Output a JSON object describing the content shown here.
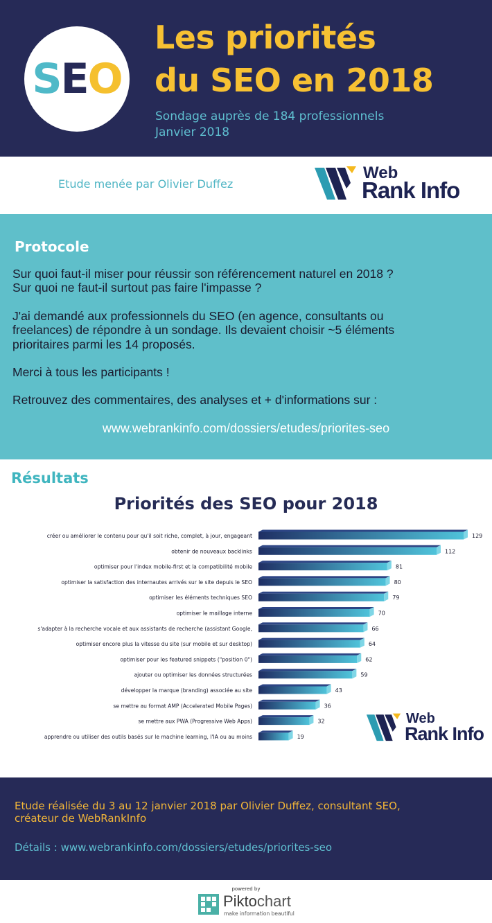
{
  "header": {
    "badge": {
      "s": "S",
      "e": "E",
      "o": "O"
    },
    "title_line1": "Les priorités",
    "title_line2": "du SEO en 2018",
    "subtitle_line1": "Sondage auprès de 184 professionnels",
    "subtitle_line2": "Janvier 2018"
  },
  "byline": {
    "author": "Etude menée par Olivier Duffez",
    "logo_web": "Web",
    "logo_rankinfo": "Rank Info"
  },
  "protocole": {
    "title": "Protocole",
    "lines": [
      "Sur quoi faut-il miser pour réussir son référencement naturel en 2018 ?",
      "Sur quoi ne faut-il surtout pas faire l'impasse ?",
      "J'ai demandé aux professionnels du SEO (en agence, consultants ou",
      "freelances) de répondre à un sondage. Ils devaient choisir ~5 éléments",
      "prioritaires parmi les 14 proposés.",
      "Merci à tous les participants !",
      "Retrouvez  des commentaires, des analyses et + d'informations sur :"
    ],
    "url": "www.webrankinfo.com/dossiers/etudes/priorites-seo"
  },
  "results": {
    "title": "Résultats"
  },
  "chart_data": {
    "type": "bar",
    "orientation": "horizontal",
    "title": "Priorités des SEO pour 2018",
    "categories": [
      "créer ou améliorer le contenu pour qu'il soit riche, complet, à jour, engageant",
      "obtenir de nouveaux backlinks",
      "optimiser pour l'index mobile-first et la compatibilité mobile",
      "optimiser la satisfaction des internautes arrivés sur le site depuis le SEO",
      "optimiser les éléments techniques SEO",
      "optimiser le maillage interne",
      "s'adapter à la recherche vocale et aux assistants de recherche (assistant Google,",
      "optimiser encore plus la vitesse du site (sur mobile et sur desktop)",
      "optimiser pour les featured snippets (\"position 0\")",
      "ajouter ou optimiser les données structurées",
      "développer la marque (branding) associée au site",
      "se mettre au format AMP (Accelerated Mobile Pages)",
      "se mettre aux PWA (Progressive Web Apps)",
      "apprendre ou utiliser des outils basés sur le machine learning, l'IA ou au moins"
    ],
    "values": [
      129,
      112,
      81,
      80,
      79,
      70,
      66,
      64,
      62,
      59,
      43,
      36,
      32,
      19
    ],
    "xlabel": "",
    "ylabel": "",
    "grid": false,
    "colors": {
      "bar_dark": "#1f2f64",
      "bar_light": "#4fc3da",
      "bar_top": "#2d4585"
    }
  },
  "chart_logo": {
    "web": "Web",
    "rankinfo": "Rank Info"
  },
  "footer": {
    "line1": "Etude réalisée du 3 au 12 janvier 2018 par Olivier Duffez,  consultant SEO,",
    "line2": "créateur de WebRankInfo",
    "details": "Détails :  www.webrankinfo.com/dossiers/etudes/priorites-seo"
  },
  "credit": {
    "powered": "powered by",
    "name_a": "Pikto",
    "name_b": "chart",
    "tagline": "make information beautiful"
  },
  "colors": {
    "navy": "#262a57",
    "yellow": "#f7c133",
    "teal": "#5fbfca",
    "teal_text": "#4fb5c4"
  }
}
